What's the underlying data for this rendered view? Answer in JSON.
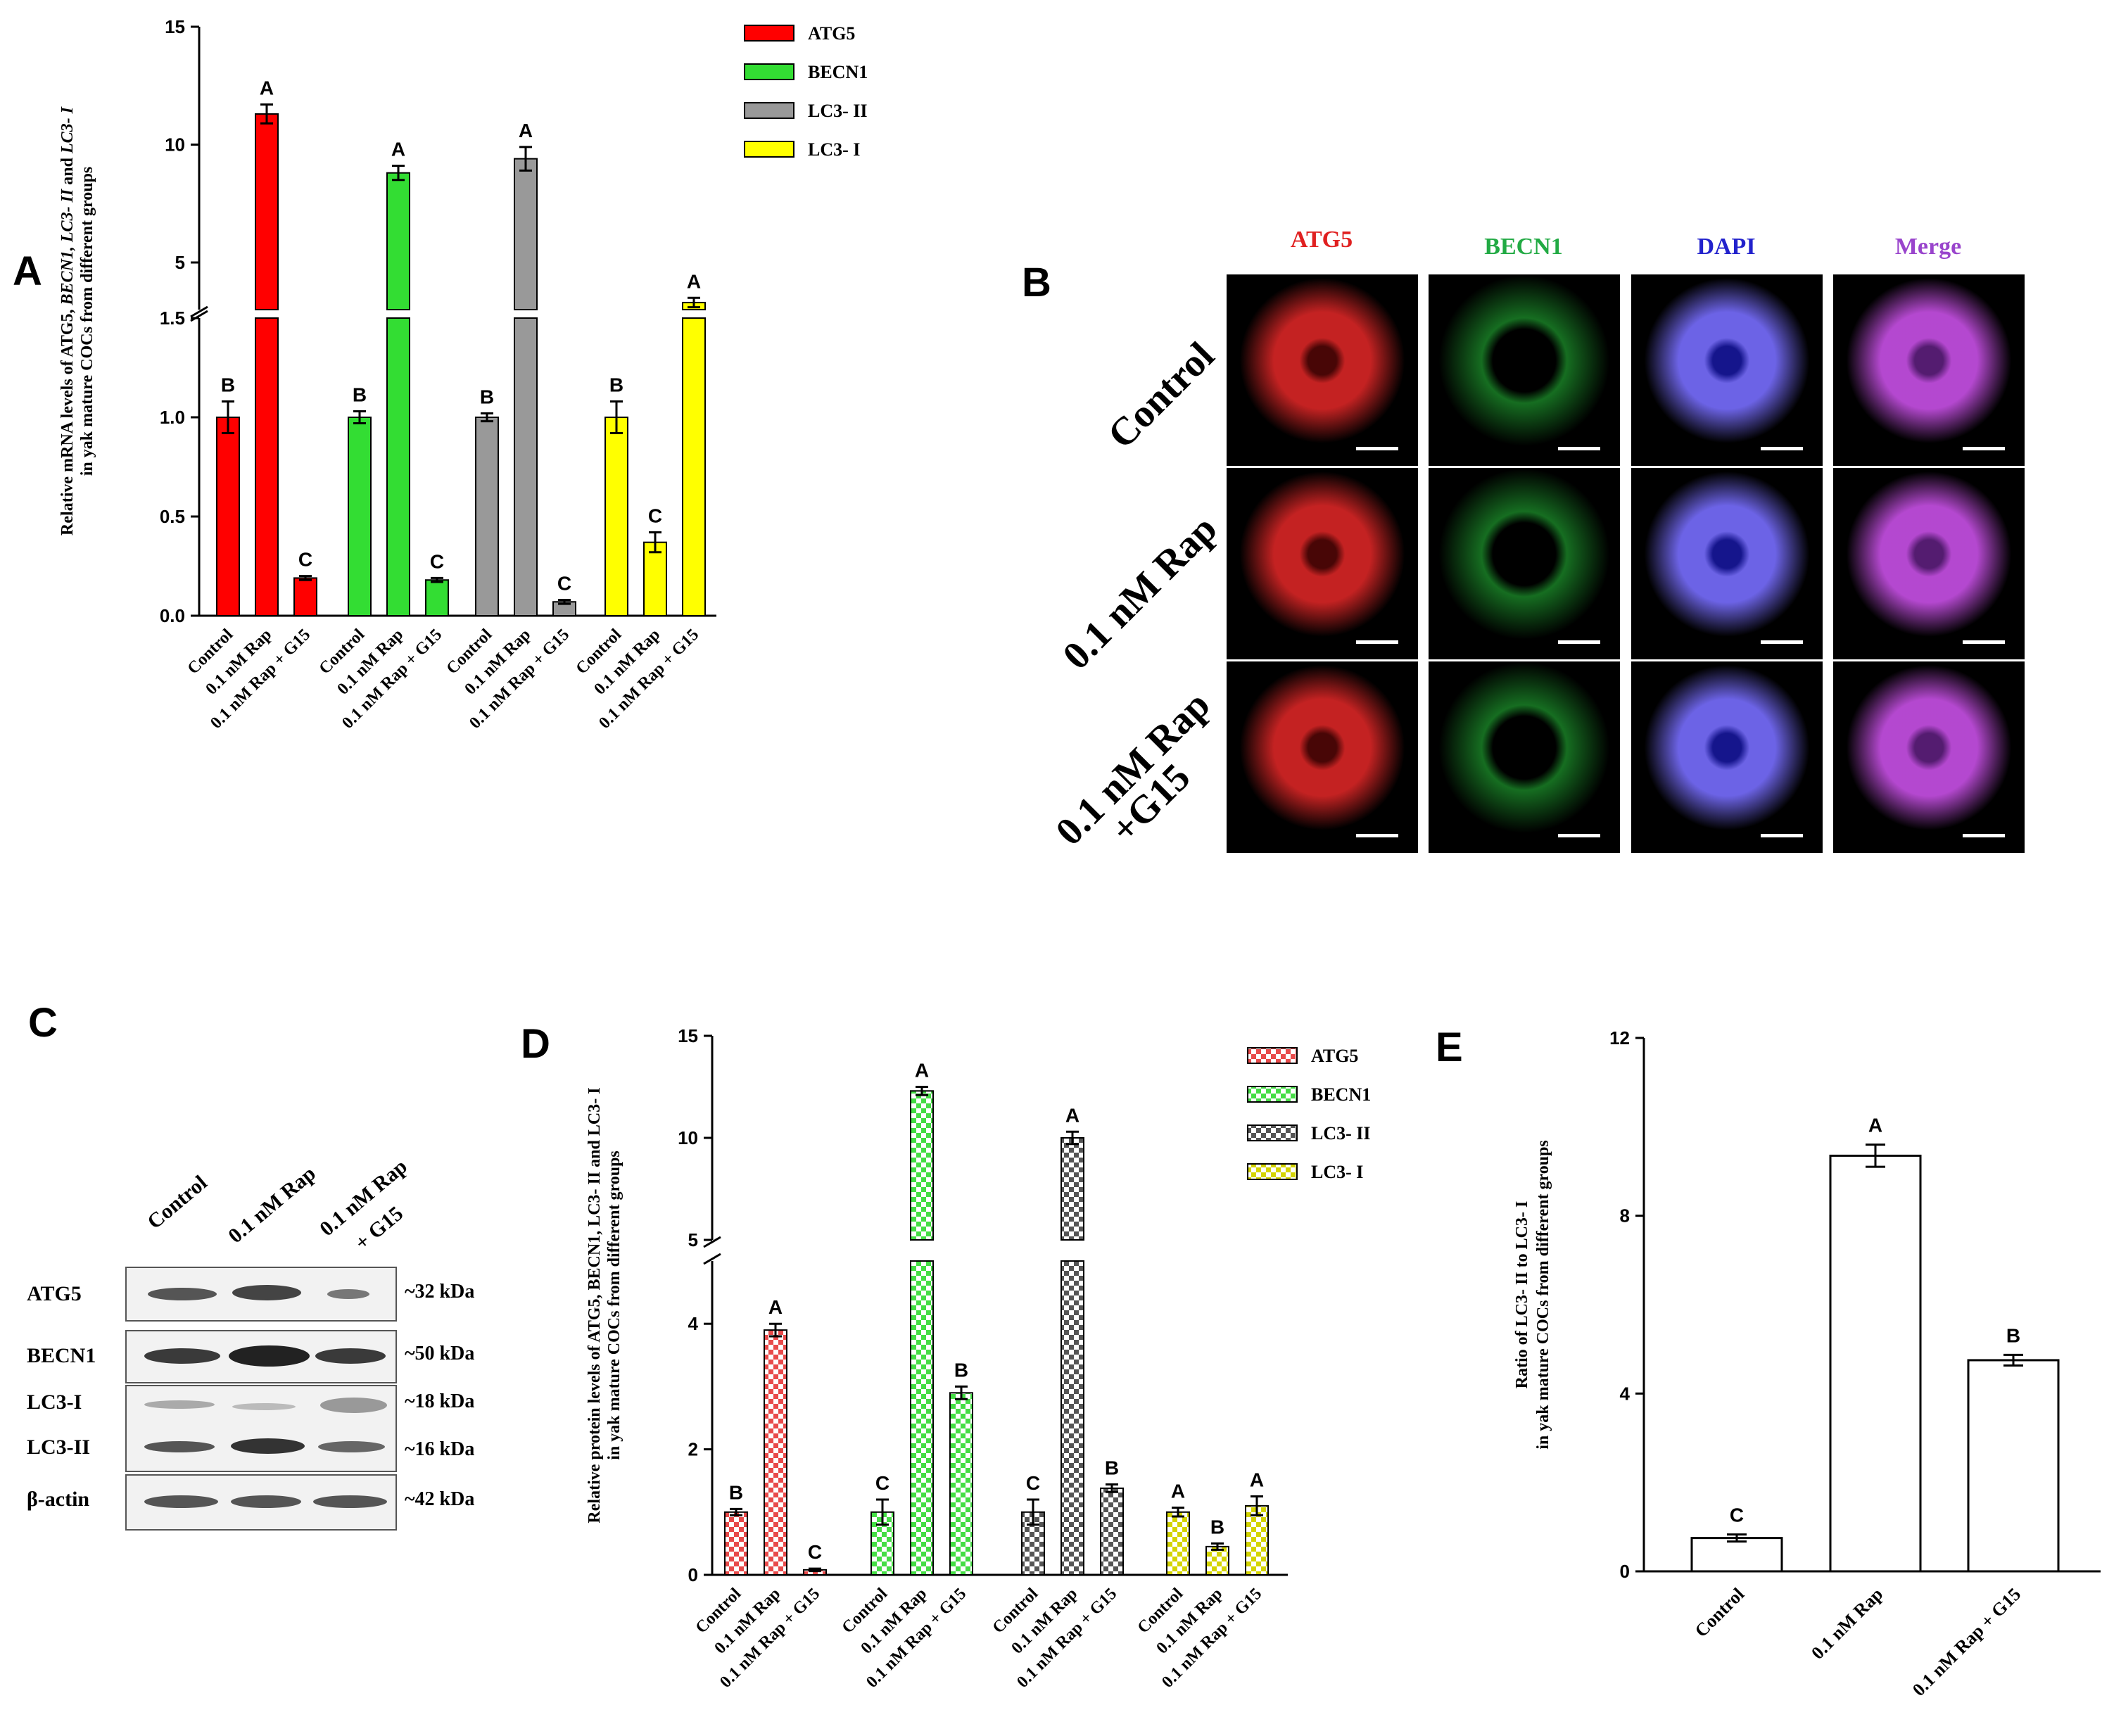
{
  "panels": {
    "a": "A",
    "b": "B",
    "c": "C",
    "d": "D",
    "e": "E"
  },
  "chart_data": [
    {
      "id": "A",
      "type": "bar",
      "ylabel_line1": "Relative mRNA levels of ATG5, ",
      "ylabel_italic": "BECN1, LC3- II",
      "ylabel_mid": " and ",
      "ylabel_italic2": "LC3- I",
      "ylabel_line2": "in yak mature COCs from different groups",
      "broken_axis": true,
      "lower_ticks": [
        "0.0",
        "0.5",
        "1.0",
        "1.5"
      ],
      "upper_ticks": [
        "5",
        "10",
        "15"
      ],
      "ylim_lower": [
        0,
        1.5
      ],
      "ylim_upper": [
        3,
        15
      ],
      "groups": [
        "Control",
        "0.1 nM Rap",
        "0.1 nM Rap + G15"
      ],
      "legend_position": "top-right",
      "series": [
        {
          "name": "ATG5",
          "color": "#ff0000",
          "values": [
            1.0,
            11.3,
            0.19
          ],
          "errors": [
            0.08,
            0.4,
            0.01
          ],
          "letters": [
            "B",
            "A",
            "C"
          ]
        },
        {
          "name": "BECN1",
          "color": "#33dd33",
          "values": [
            1.0,
            8.8,
            0.18
          ],
          "errors": [
            0.03,
            0.3,
            0.01
          ],
          "letters": [
            "B",
            "A",
            "C"
          ]
        },
        {
          "name": "LC3- II",
          "color": "#999999",
          "values": [
            1.0,
            9.4,
            0.07
          ],
          "errors": [
            0.02,
            0.5,
            0.01
          ],
          "letters": [
            "B",
            "A",
            "C"
          ]
        },
        {
          "name": "LC3- I",
          "color": "#ffff00",
          "values": [
            1.0,
            0.37,
            3.3
          ],
          "errors": [
            0.08,
            0.05,
            0.2
          ],
          "letters": [
            "B",
            "C",
            "A"
          ]
        }
      ]
    },
    {
      "id": "D",
      "type": "bar",
      "ylabel_line1": "Relative protein levels of ATG5, BECN1, LC3- II and LC3- I",
      "ylabel_line2": "in yak mature COCs from different groups",
      "broken_axis": true,
      "lower_ticks": [
        "0",
        "2",
        "4"
      ],
      "upper_ticks": [
        "5",
        "10",
        "15"
      ],
      "ylim_lower": [
        0,
        5
      ],
      "ylim_upper": [
        5,
        15
      ],
      "groups": [
        "Control",
        "0.1 nM Rap",
        "0.1 nM Rap + G15"
      ],
      "legend_position": "top-right",
      "series": [
        {
          "name": "ATG5",
          "color": "#e84a4a",
          "values": [
            1.0,
            3.9,
            0.08
          ],
          "errors": [
            0.05,
            0.1,
            0.02
          ],
          "letters": [
            "B",
            "A",
            "C"
          ]
        },
        {
          "name": "BECN1",
          "color": "#44dd44",
          "values": [
            1.0,
            12.3,
            2.9
          ],
          "errors": [
            0.2,
            0.2,
            0.1
          ],
          "letters": [
            "C",
            "A",
            "B"
          ]
        },
        {
          "name": "LC3- II",
          "color": "#555555",
          "values": [
            1.0,
            10.0,
            1.38
          ],
          "errors": [
            0.2,
            0.3,
            0.06
          ],
          "letters": [
            "C",
            "A",
            "B"
          ]
        },
        {
          "name": "LC3- I",
          "color": "#d4d400",
          "values": [
            1.0,
            0.45,
            1.1
          ],
          "errors": [
            0.07,
            0.05,
            0.15
          ],
          "letters": [
            "A",
            "B",
            "A"
          ]
        }
      ]
    },
    {
      "id": "E",
      "type": "bar",
      "ylabel_line1": "Ratio of LC3- II to LC3- I",
      "ylabel_line2": "in yak mature COCs from different groups",
      "ticks": [
        "0",
        "4",
        "8",
        "12"
      ],
      "ylim": [
        0,
        12
      ],
      "categories": [
        "Control",
        "0.1 nM Rap",
        "0.1 nM Rap + G15"
      ],
      "values": [
        0.75,
        9.35,
        4.75
      ],
      "errors": [
        0.08,
        0.25,
        0.12
      ],
      "letters": [
        "C",
        "A",
        "B"
      ]
    }
  ],
  "micrographs": {
    "columns": [
      {
        "label": "ATG5",
        "color": "#e02020"
      },
      {
        "label": "BECN1",
        "color": "#22aa44"
      },
      {
        "label": "DAPI",
        "color": "#2222cc"
      },
      {
        "label": "Merge",
        "color": "#9944cc"
      }
    ],
    "rows": [
      {
        "label_line1": "Control",
        "label_line2": ""
      },
      {
        "label_line1": "0.1 nM Rap",
        "label_line2": ""
      },
      {
        "label_line1": "0.1 nM Rap",
        "label_line2": "+G15"
      }
    ]
  },
  "western_blot": {
    "lanes": [
      "Control",
      "0.1 nM Rap",
      "0.1 nM Rap",
      "+ G15"
    ],
    "bands": [
      {
        "name": "ATG5",
        "size": "~32 kDa"
      },
      {
        "name": "BECN1",
        "size": "~50 kDa"
      },
      {
        "name": "LC3-I",
        "size": "~18 kDa"
      },
      {
        "name": "LC3-II",
        "size": "~16 kDa"
      },
      {
        "name": "β-actin",
        "size": "~42 kDa"
      }
    ]
  }
}
